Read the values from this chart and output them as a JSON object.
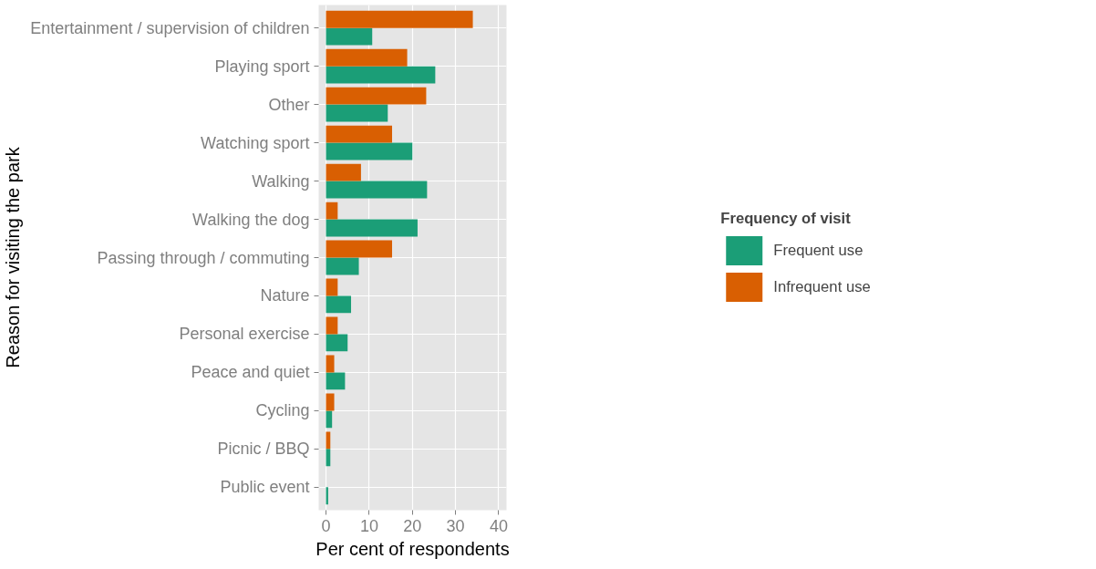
{
  "chart_data": {
    "type": "bar",
    "orientation": "horizontal",
    "xlabel": "Per cent of respondents",
    "ylabel": "Reason for visiting the park",
    "legend_title": "Frequency of visit",
    "categories": [
      "Entertainment / supervision of children",
      "Playing sport",
      "Other",
      "Watching sport",
      "Walking",
      "Walking the dog",
      "Passing through / commuting",
      "Nature",
      "Personal exercise",
      "Peace and quiet",
      "Cycling",
      "Picnic / BBQ",
      "Public event"
    ],
    "series": [
      {
        "name": "Frequent use",
        "color": "#1b9e77",
        "values": [
          10.7,
          25.3,
          14.3,
          20.0,
          23.4,
          21.2,
          7.6,
          5.8,
          5.0,
          4.4,
          1.4,
          1.0,
          0.5
        ]
      },
      {
        "name": "Infrequent use",
        "color": "#d95f02",
        "values": [
          34.0,
          18.8,
          23.2,
          15.3,
          8.1,
          2.7,
          15.3,
          2.7,
          2.7,
          1.9,
          1.9,
          1.0,
          null
        ]
      }
    ],
    "xlim": [
      -1.7,
      41.8
    ],
    "xticks": [
      0,
      10,
      20,
      30,
      40
    ],
    "grid": true,
    "legend": "right"
  }
}
